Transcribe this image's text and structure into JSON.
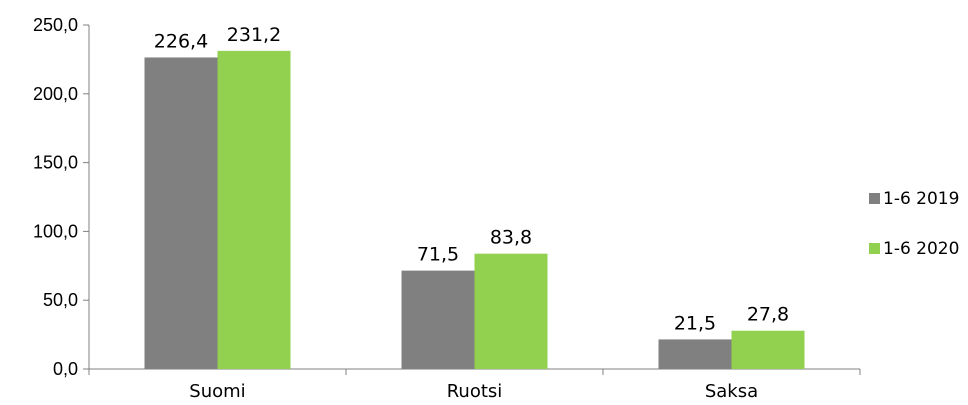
{
  "chart_data": {
    "type": "bar",
    "categories": [
      "Suomi",
      "Ruotsi",
      "Saksa"
    ],
    "series": [
      {
        "name": "1-6 2019",
        "values": [
          226.4,
          71.5,
          21.5
        ],
        "labels": [
          "226,4",
          "71,5",
          "21,5"
        ],
        "color": "#808080"
      },
      {
        "name": "1-6 2020",
        "values": [
          231.2,
          83.8,
          27.8
        ],
        "labels": [
          "231,2",
          "83,8",
          "27,8"
        ],
        "color": "#92D050"
      }
    ],
    "y_ticks": [
      0,
      50,
      100,
      150,
      200,
      250
    ],
    "y_tick_labels": [
      "0,0",
      "50,0",
      "100,0",
      "150,0",
      "200,0",
      "250,0"
    ],
    "ylim": [
      0,
      250
    ],
    "grid": false,
    "legend_position": "right"
  }
}
